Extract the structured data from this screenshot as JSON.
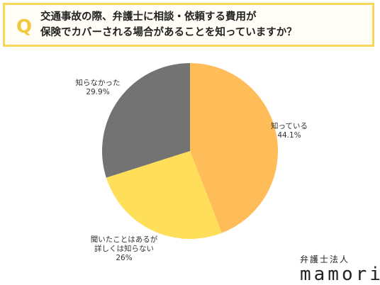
{
  "question": {
    "mark": "Q",
    "line1": "交通事故の際、弁護士に相談・依頼する費用が",
    "line2": "保険でカバーされる場合があることを知っていますか？"
  },
  "brand": {
    "sub": "弁護士法人",
    "name": "mamori"
  },
  "chart_data": {
    "type": "pie",
    "slices": [
      {
        "label": "知っている",
        "value": 44.1,
        "value_label": "44.1%",
        "color": "#ffbd59"
      },
      {
        "label": "聞いたことはあるが詳しくは知らない",
        "label_lines": [
          "聞いたことはあるが",
          "詳しくは知らない"
        ],
        "value": 26,
        "value_label": "26%",
        "color": "#ffde59"
      },
      {
        "label": "知らなかった",
        "value": 29.9,
        "value_label": "29.9%",
        "color": "#737373"
      }
    ],
    "start": "12 o'clock",
    "direction": "clockwise",
    "legend": "none"
  }
}
